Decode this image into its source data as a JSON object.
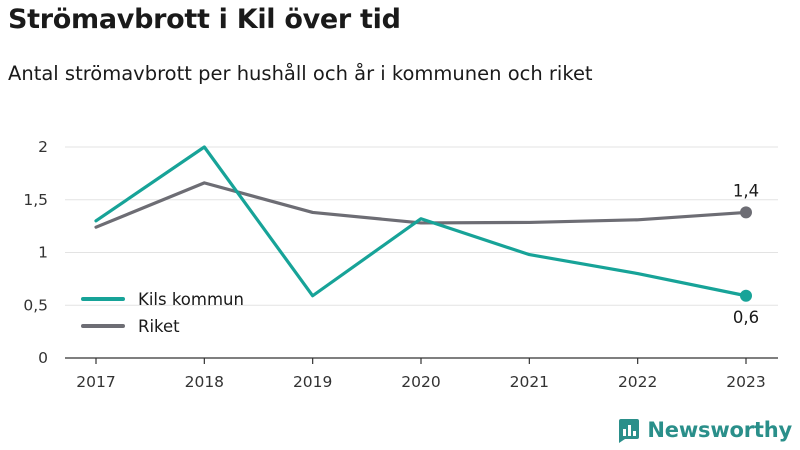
{
  "title": "Strömavbrott i Kil över tid",
  "subtitle": "Antal strömavbrott per hushåll och år i kommunen och riket",
  "brand": {
    "name": "Newsworthy",
    "icon": "newsworthy-logo-icon"
  },
  "colors": {
    "kil": "#17a398",
    "riket": "#6d6d74",
    "grid": "#e3e3e3",
    "axis": "#333333"
  },
  "chart_data": {
    "type": "line",
    "title": "Strömavbrott i Kil över tid",
    "subtitle": "Antal strömavbrott per hushåll och år i kommunen och riket",
    "xlabel": "",
    "ylabel": "",
    "x": [
      "2017",
      "2018",
      "2019",
      "2020",
      "2021",
      "2022",
      "2023"
    ],
    "ylim": [
      0,
      2
    ],
    "yticks": [
      0,
      0.5,
      1,
      1.5,
      2
    ],
    "ytick_labels": [
      "0",
      "0,5",
      "1",
      "1,5",
      "2"
    ],
    "grid": true,
    "legend_position": "left",
    "series": [
      {
        "name": "Kils kommun",
        "color": "#17a398",
        "values": [
          1.3,
          2.0,
          0.59,
          1.32,
          0.98,
          0.8,
          0.59
        ],
        "end_label": "0,6"
      },
      {
        "name": "Riket",
        "color": "#6d6d74",
        "values": [
          1.24,
          1.66,
          1.38,
          1.28,
          1.285,
          1.31,
          1.38
        ],
        "end_label": "1,4"
      }
    ]
  }
}
